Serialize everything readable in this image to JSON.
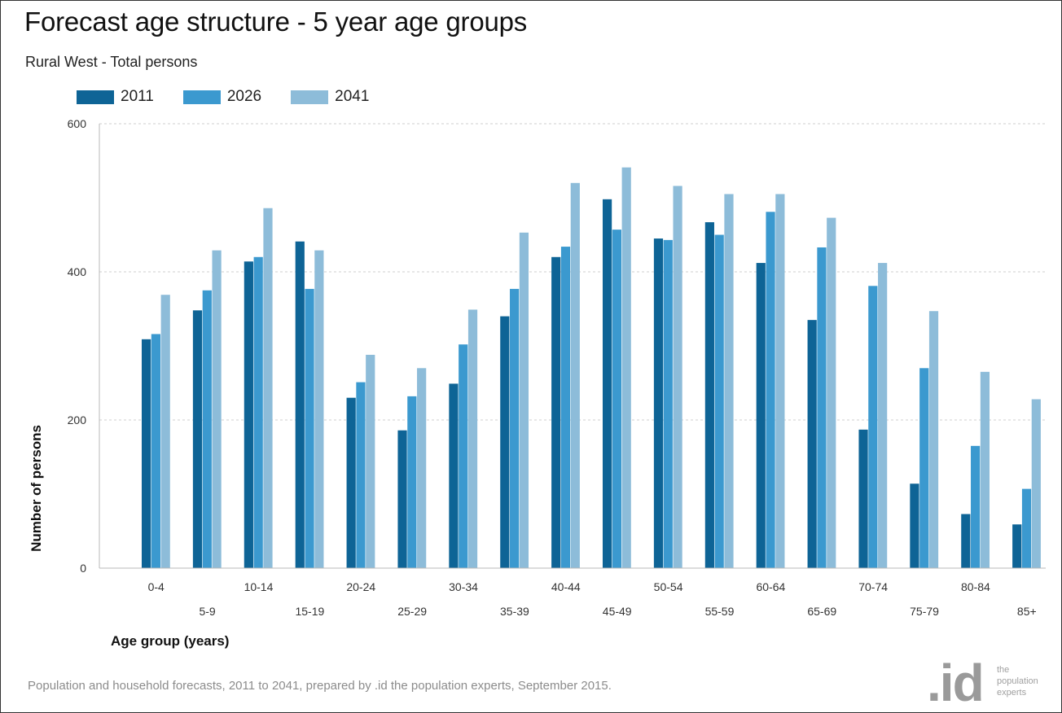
{
  "chart_data": {
    "type": "bar",
    "title": "Forecast age structure - 5 year age groups",
    "subtitle": "Rural West - Total persons",
    "xlabel": "Age group (years)",
    "ylabel": "Number of persons",
    "ylim": [
      0,
      600
    ],
    "yticks": [
      "0",
      "200",
      "400",
      "600"
    ],
    "grid": true,
    "legend_position": "top-left",
    "categories": [
      "0-4",
      "5-9",
      "10-14",
      "15-19",
      "20-24",
      "25-29",
      "30-34",
      "35-39",
      "40-44",
      "45-49",
      "50-54",
      "55-59",
      "60-64",
      "65-69",
      "70-74",
      "75-79",
      "80-84",
      "85+"
    ],
    "series": [
      {
        "name": "2011",
        "color": "#0e6496",
        "values": [
          309,
          348,
          414,
          441,
          230,
          186,
          249,
          340,
          420,
          498,
          445,
          467,
          412,
          335,
          187,
          114,
          73,
          59
        ]
      },
      {
        "name": "2026",
        "color": "#3b99cf",
        "values": [
          316,
          375,
          420,
          377,
          251,
          232,
          302,
          377,
          434,
          457,
          443,
          450,
          481,
          433,
          381,
          270,
          165,
          107
        ]
      },
      {
        "name": "2041",
        "color": "#8dbcd9",
        "values": [
          369,
          429,
          486,
          429,
          288,
          270,
          349,
          453,
          520,
          541,
          516,
          505,
          505,
          473,
          412,
          347,
          265,
          228
        ]
      }
    ]
  },
  "footer": "Population and household forecasts, 2011 to 2041, prepared by .id the population experts, September 2015.",
  "logo": {
    "mark": ".id",
    "line1": "the",
    "line2": "population",
    "line3": "experts"
  }
}
